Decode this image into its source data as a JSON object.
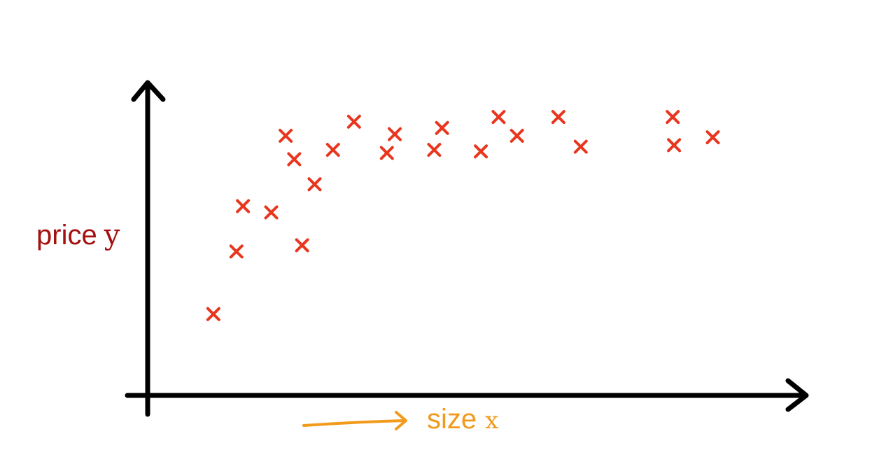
{
  "chart_data": {
    "type": "scatter",
    "title": "",
    "xlabel": {
      "word": "size",
      "var": "x"
    },
    "ylabel": {
      "word": "price",
      "var": "y"
    },
    "xlim": [
      0,
      100
    ],
    "ylim": [
      0,
      100
    ],
    "grid": false,
    "legend": "none",
    "x": [
      10,
      13.5,
      14.5,
      18.8,
      21,
      22.3,
      23.5,
      25.4,
      28.2,
      31.4,
      36.4,
      37.6,
      43.6,
      44.8,
      50.7,
      53.4,
      56.2,
      62.5,
      65.9,
      79.9,
      80.1,
      86
    ],
    "y": [
      26,
      46,
      60.5,
      58.5,
      83,
      75.5,
      48,
      67.5,
      78.5,
      87.5,
      77.5,
      83.5,
      78.5,
      85.5,
      78,
      89,
      83,
      89,
      79.5,
      89,
      80,
      82.5
    ],
    "series": [
      {
        "values_ref": "y",
        "color": "#e8361e",
        "marker": "x"
      }
    ]
  },
  "colors": {
    "axis": "#000000",
    "marker": "#e8361e",
    "ylabel": "#a3100f",
    "xlabel": "#f19a1c",
    "arrow_hint": "#f19a1c"
  }
}
